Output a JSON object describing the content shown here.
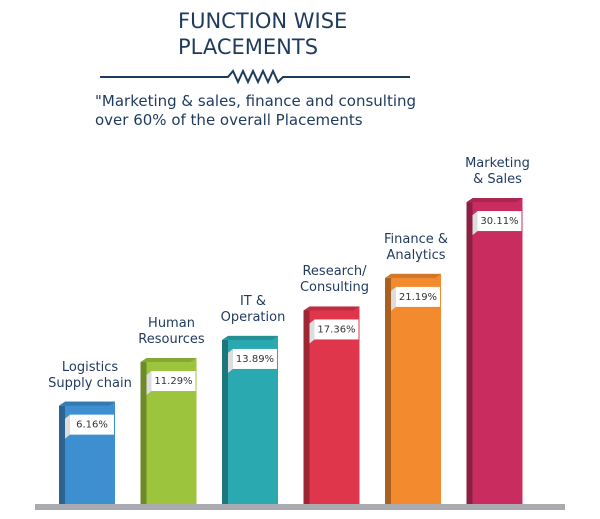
{
  "chart_data": {
    "type": "bar",
    "title": "FUNCTION WISE\nPLACEMENTS",
    "subtitle": "\"Marketing & sales, finance and consulting\nover 60% of the overall Placements",
    "categories": [
      "Logistics\nSupply chain",
      "Human\nResources",
      "IT &\nOperation",
      "Research/\nConsulting",
      "Finance &\nAnalytics",
      "Marketing\n& Sales"
    ],
    "values": [
      6.16,
      11.29,
      13.89,
      17.36,
      21.19,
      30.11
    ],
    "value_labels": [
      "6.16%",
      "11.29%",
      "13.89%",
      "17.36%",
      "21.19%",
      "30.11%"
    ],
    "colors": [
      "#3d8fcf",
      "#9cc43c",
      "#2aa9b1",
      "#e0364b",
      "#f38b2e",
      "#c92c5f"
    ]
  }
}
